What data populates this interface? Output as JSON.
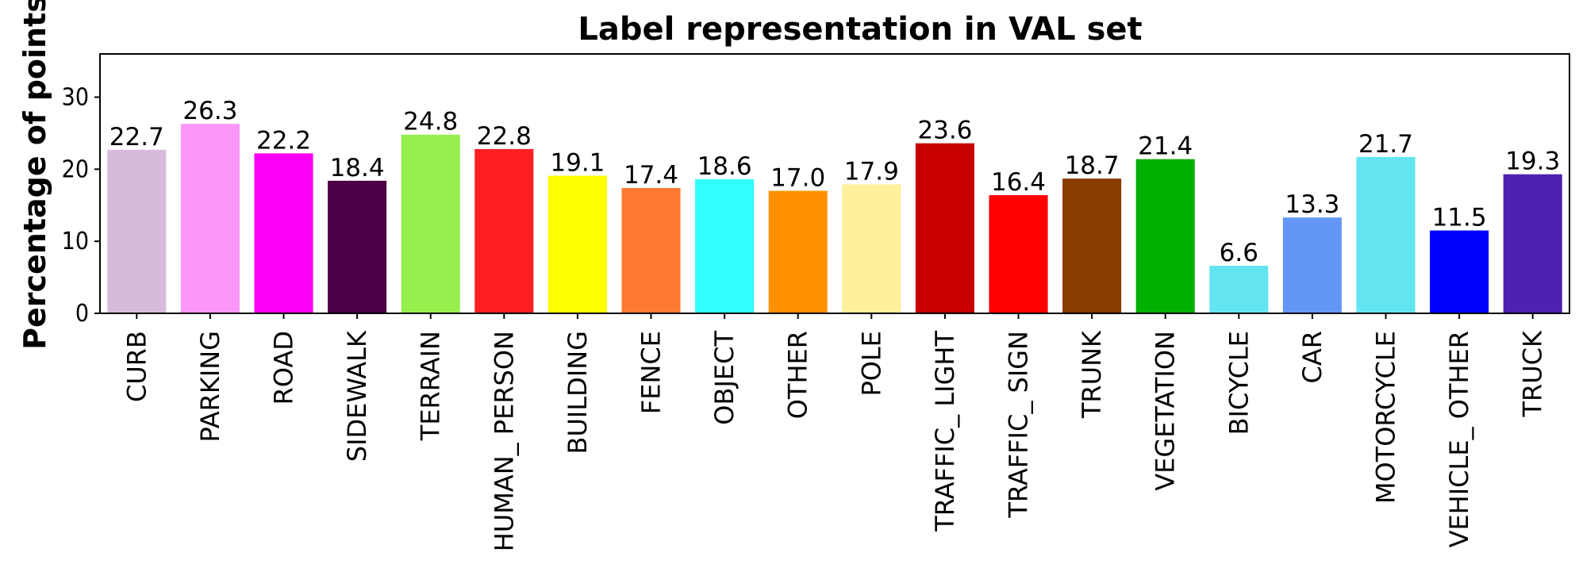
{
  "chart_data": {
    "type": "bar",
    "title": "Label representation in VAL set",
    "xlabel": "",
    "ylabel": "Percentage of points",
    "ylim": [
      0,
      36
    ],
    "yticks": [
      0,
      10,
      20,
      30
    ],
    "grid": false,
    "categories": [
      "CURB",
      "PARKING",
      "ROAD",
      "SIDEWALK",
      "TERRAIN",
      "HUMAN_PERSON",
      "BUILDING",
      "FENCE",
      "OBJECT",
      "OTHER",
      "POLE",
      "TRAFFIC_LIGHT",
      "TRAFFIC_SIGN",
      "TRUNK",
      "VEGETATION",
      "BICYCLE",
      "CAR",
      "MOTORCYCLE",
      "VEHICLE_OTHER",
      "TRUCK"
    ],
    "category_labels": [
      "CURB",
      "PARKING",
      "ROAD",
      "SIDEWALK",
      "TERRAIN",
      "HUMAN_ PERSON",
      "BUILDING",
      "FENCE",
      "OBJECT",
      "OTHER",
      "POLE",
      "TRAFFIC_ LIGHT",
      "TRAFFIC_ SIGN",
      "TRUNK",
      "VEGETATION",
      "BICYCLE",
      "CAR",
      "MOTORCYCLE",
      "VEHICLE_ OTHER",
      "TRUCK"
    ],
    "values": [
      22.7,
      26.3,
      22.2,
      18.4,
      24.8,
      22.8,
      19.1,
      17.4,
      18.6,
      17.0,
      17.9,
      23.6,
      16.4,
      18.7,
      21.4,
      6.6,
      13.3,
      21.7,
      11.5,
      19.3
    ],
    "value_labels": [
      "22.7",
      "26.3",
      "22.2",
      "18.4",
      "24.8",
      "22.8",
      "19.1",
      "17.4",
      "18.6",
      "17.0",
      "17.9",
      "23.6",
      "16.4",
      "18.7",
      "21.4",
      "6.6",
      "13.3",
      "21.7",
      "11.5",
      "19.3"
    ],
    "colors": [
      "#d8bbdc",
      "#fb97f9",
      "#fb00f5",
      "#4b0045",
      "#97ef4e",
      "#ff1f20",
      "#ffff00",
      "#ff7a30",
      "#2fffff",
      "#ff9000",
      "#fff09b",
      "#c80000",
      "#ff0000",
      "#873c00",
      "#00b000",
      "#62e5f1",
      "#6496f5",
      "#62e5f1",
      "#0000ff",
      "#5020b0"
    ]
  }
}
